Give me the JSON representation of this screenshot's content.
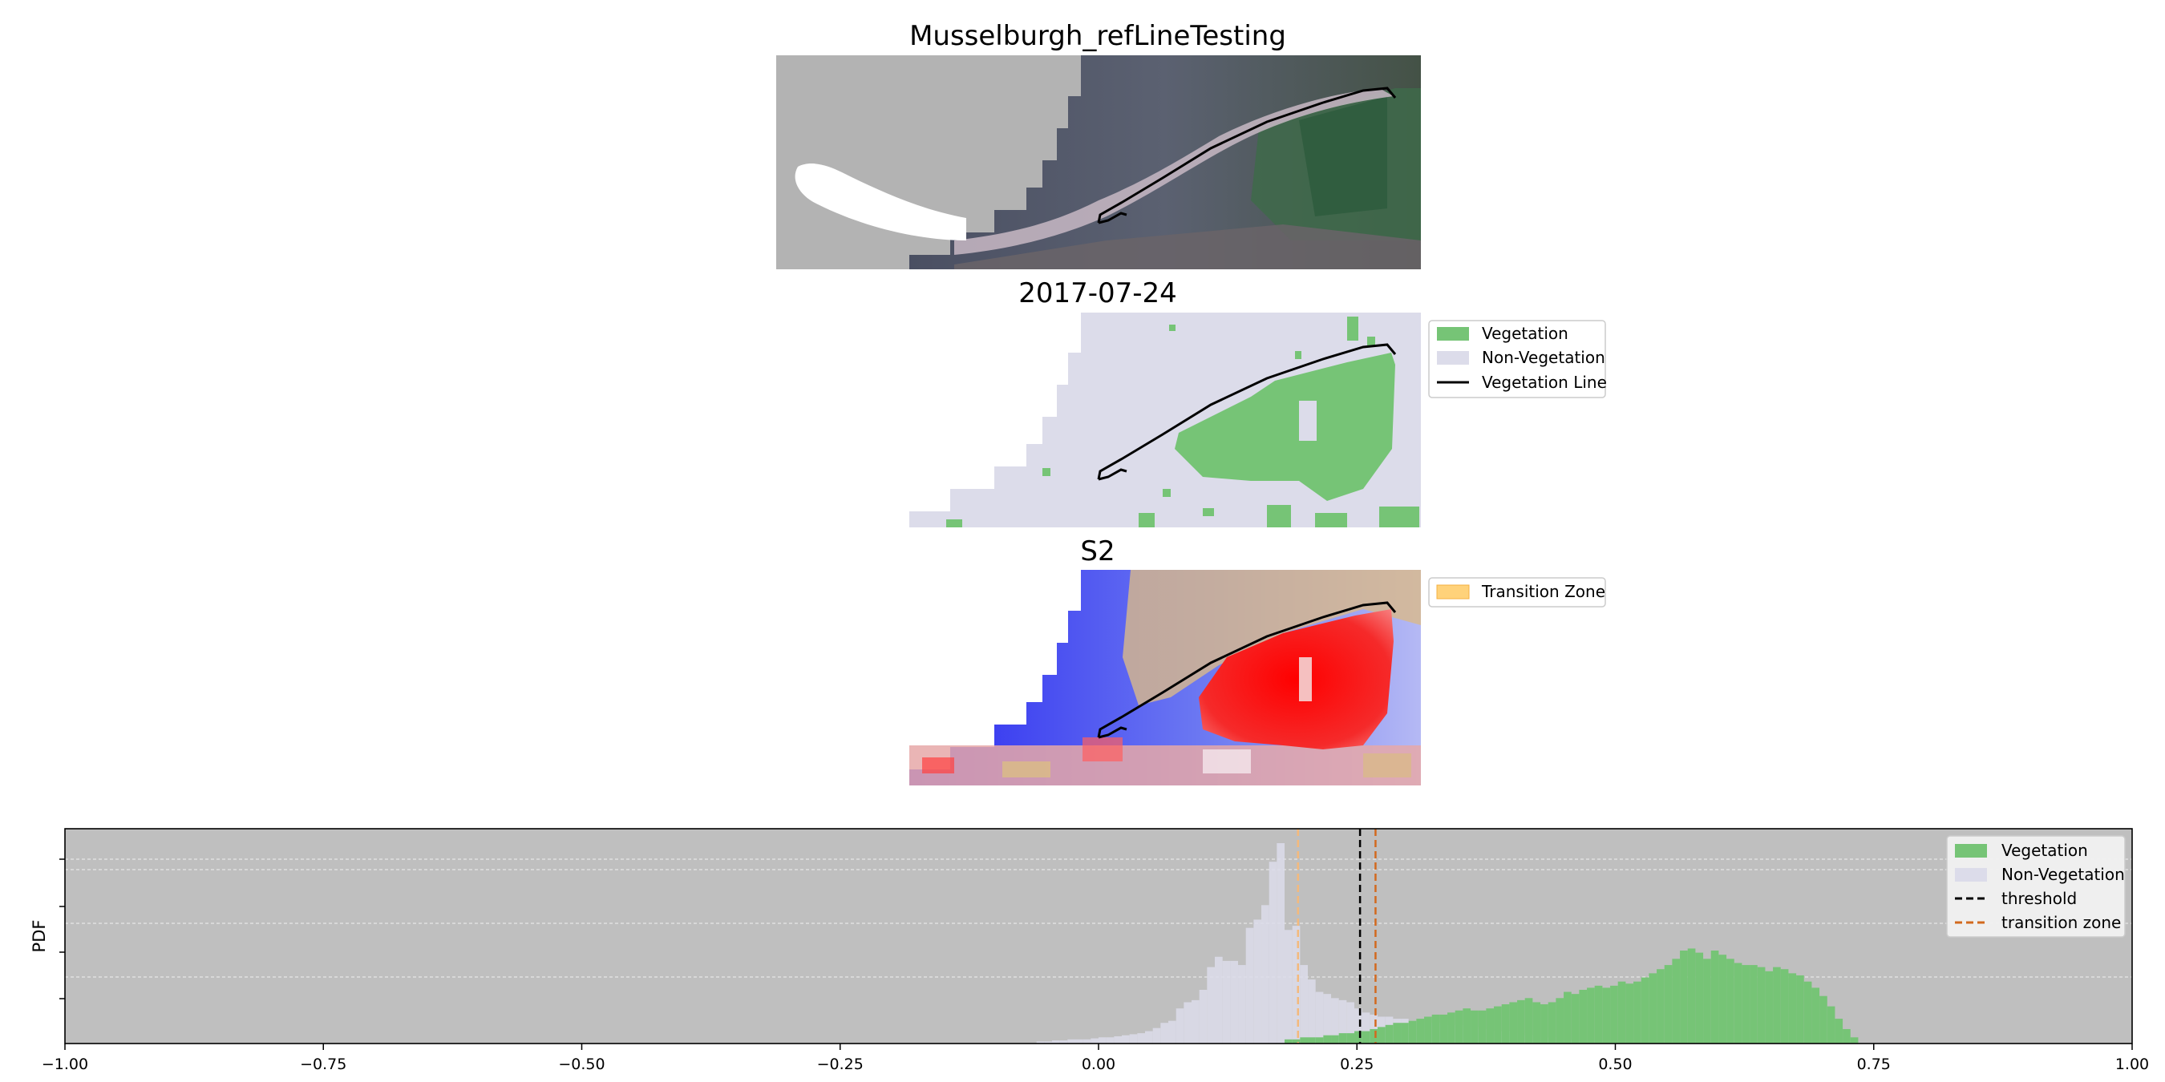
{
  "figure": {
    "panel1_title": "Musselburgh_refLineTesting",
    "panel2_title": "2017-07-24",
    "panel3_title": "S2"
  },
  "legend_classes": {
    "items": [
      {
        "label": "Vegetation",
        "color": "#76c476",
        "kind": "patch"
      },
      {
        "label": "Non-Vegetation",
        "color": "#dcdcea",
        "kind": "patch"
      },
      {
        "label": "Vegetation Line",
        "color": "#000000",
        "kind": "line"
      }
    ]
  },
  "legend_transition": {
    "items": [
      {
        "label": "Transition Zone",
        "color": "#ffd27a",
        "kind": "patch"
      }
    ]
  },
  "colors": {
    "masked_gray": "#b3b3b3",
    "vegetation": "#76c476",
    "non_vegetation": "#dcdcea",
    "hist_background": "#bfbfbf",
    "threshold": "#000000",
    "transition_zone": "#d2691e",
    "transition_zone_light": "#f4b97c"
  },
  "chart_data": {
    "type": "bar",
    "title": "",
    "xlabel": "",
    "ylabel": "PDF",
    "xlim": [
      -1.0,
      1.0
    ],
    "xticks": [
      "−1.00",
      "−0.75",
      "−0.50",
      "−0.25",
      "0.00",
      "0.25",
      "0.50",
      "0.75",
      "1.00"
    ],
    "xtick_values": [
      -1.0,
      -0.75,
      -0.5,
      -0.25,
      0.0,
      0.25,
      0.5,
      0.75,
      1.0
    ],
    "grid": "horizontal dashed",
    "legend_placement": "top-right",
    "legend": [
      {
        "label": "Vegetation",
        "kind": "patch",
        "color": "#76c476"
      },
      {
        "label": "Non-Vegetation",
        "kind": "patch",
        "color": "#dcdcea"
      },
      {
        "label": "threshold",
        "kind": "dashed-line",
        "color": "#000000"
      },
      {
        "label": "transition zone",
        "kind": "dashed-line",
        "color": "#d2691e"
      }
    ],
    "threshold": 0.253,
    "transition_zone": [
      0.193,
      0.268
    ],
    "series": [
      {
        "name": "Non-Vegetation",
        "bin_width": 0.0075,
        "x": [
          -0.06,
          -0.0525,
          -0.045,
          -0.0375,
          -0.03,
          -0.0225,
          -0.015,
          -0.0075,
          0.0,
          0.0075,
          0.015,
          0.0225,
          0.03,
          0.0375,
          0.045,
          0.0525,
          0.06,
          0.0675,
          0.075,
          0.0825,
          0.09,
          0.0975,
          0.105,
          0.1125,
          0.12,
          0.1275,
          0.135,
          0.1425,
          0.15,
          0.1575,
          0.165,
          0.1725,
          0.18,
          0.1875,
          0.195,
          0.2025,
          0.21,
          0.2175,
          0.225,
          0.2325,
          0.24,
          0.2475,
          0.255,
          0.2625,
          0.27,
          0.2775,
          0.285,
          0.2925,
          0.3,
          0.3075,
          0.315,
          0.3225,
          0.33,
          0.3375,
          0.345,
          0.3525,
          0.36,
          0.3675,
          0.375,
          0.3825,
          0.39,
          0.3975,
          0.405,
          0.4125,
          0.42,
          0.4275,
          0.435,
          0.4425,
          0.45,
          0.4575,
          0.465
        ],
        "values": [
          0.01,
          0.01,
          0.015,
          0.015,
          0.02,
          0.02,
          0.02,
          0.025,
          0.03,
          0.03,
          0.035,
          0.04,
          0.045,
          0.05,
          0.06,
          0.075,
          0.1,
          0.11,
          0.17,
          0.2,
          0.21,
          0.26,
          0.37,
          0.42,
          0.4,
          0.4,
          0.38,
          0.56,
          0.6,
          0.67,
          0.88,
          0.97,
          0.55,
          0.57,
          0.38,
          0.31,
          0.25,
          0.24,
          0.22,
          0.21,
          0.2,
          0.17,
          0.15,
          0.14,
          0.13,
          0.13,
          0.12,
          0.12,
          0.11,
          0.11,
          0.1,
          0.1,
          0.1,
          0.09,
          0.09,
          0.08,
          0.08,
          0.07,
          0.07,
          0.06,
          0.06,
          0.05,
          0.05,
          0.04,
          0.04,
          0.03,
          0.03,
          0.02,
          0.02,
          0.015,
          0.01
        ]
      },
      {
        "name": "Vegetation",
        "bin_width": 0.0075,
        "x": [
          0.18,
          0.1875,
          0.195,
          0.2025,
          0.21,
          0.2175,
          0.225,
          0.2325,
          0.24,
          0.2475,
          0.255,
          0.2625,
          0.27,
          0.2775,
          0.285,
          0.2925,
          0.3,
          0.3075,
          0.315,
          0.3225,
          0.33,
          0.3375,
          0.345,
          0.3525,
          0.36,
          0.3675,
          0.375,
          0.3825,
          0.39,
          0.3975,
          0.405,
          0.4125,
          0.42,
          0.4275,
          0.435,
          0.4425,
          0.45,
          0.4575,
          0.465,
          0.4725,
          0.48,
          0.4875,
          0.495,
          0.5025,
          0.51,
          0.5175,
          0.525,
          0.5325,
          0.54,
          0.5475,
          0.555,
          0.5625,
          0.57,
          0.5775,
          0.585,
          0.5925,
          0.6,
          0.6075,
          0.615,
          0.6225,
          0.63,
          0.6375,
          0.645,
          0.6525,
          0.66,
          0.6675,
          0.675,
          0.6825,
          0.69,
          0.6975,
          0.705,
          0.7125,
          0.72,
          0.7275
        ],
        "values": [
          0.02,
          0.02,
          0.03,
          0.03,
          0.03,
          0.04,
          0.04,
          0.05,
          0.05,
          0.06,
          0.06,
          0.07,
          0.08,
          0.09,
          0.1,
          0.1,
          0.11,
          0.12,
          0.13,
          0.14,
          0.14,
          0.15,
          0.16,
          0.17,
          0.16,
          0.16,
          0.17,
          0.18,
          0.19,
          0.2,
          0.21,
          0.22,
          0.2,
          0.19,
          0.2,
          0.22,
          0.25,
          0.24,
          0.26,
          0.27,
          0.28,
          0.27,
          0.28,
          0.3,
          0.29,
          0.3,
          0.32,
          0.34,
          0.36,
          0.38,
          0.41,
          0.45,
          0.46,
          0.44,
          0.41,
          0.45,
          0.43,
          0.41,
          0.39,
          0.38,
          0.38,
          0.37,
          0.35,
          0.37,
          0.36,
          0.34,
          0.33,
          0.3,
          0.27,
          0.23,
          0.18,
          0.12,
          0.07,
          0.03
        ]
      }
    ]
  }
}
